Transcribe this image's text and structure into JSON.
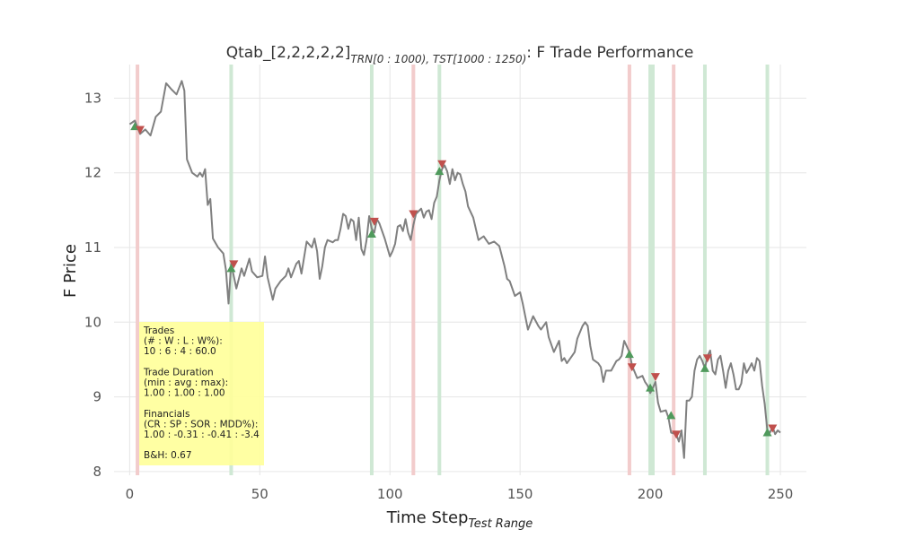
{
  "chart_data": {
    "type": "line",
    "title": {
      "prefix": "Qtab_[2,2,2,2,2]",
      "sub1": "TRN[0 : 1000), ",
      "sub2": "TST[1000 : 1250)",
      "suffix": ": F Trade Performance"
    },
    "xlabel": {
      "main": "Time Step",
      "sub": "Test Range"
    },
    "ylabel": "F Price",
    "xlim": [
      -6,
      260
    ],
    "ylim": [
      7.95,
      13.45
    ],
    "xticks": [
      0,
      50,
      100,
      150,
      200,
      250
    ],
    "yticks": [
      8,
      9,
      10,
      11,
      12,
      13
    ],
    "grid": true,
    "colors": {
      "line": "#808080",
      "buy": "#4f9a5c",
      "sell": "#c0504d",
      "buy_band": "#cfe8d4",
      "sell_band": "#f2cccc",
      "grid": "#e6e6e6",
      "info_box": "#ffff99"
    },
    "series": [
      {
        "points": [
          [
            0,
            12.65
          ],
          [
            2,
            12.7
          ],
          [
            4,
            12.52
          ],
          [
            6,
            12.58
          ],
          [
            8,
            12.5
          ],
          [
            10,
            12.75
          ],
          [
            12,
            12.82
          ],
          [
            14,
            13.2
          ],
          [
            16,
            13.12
          ],
          [
            18,
            13.05
          ],
          [
            20,
            13.23
          ],
          [
            21,
            13.1
          ],
          [
            22,
            12.18
          ],
          [
            24,
            12.0
          ],
          [
            26,
            11.95
          ],
          [
            27,
            12.0
          ],
          [
            28,
            11.95
          ],
          [
            29,
            12.05
          ],
          [
            30,
            11.57
          ],
          [
            31,
            11.65
          ],
          [
            32,
            11.12
          ],
          [
            34,
            11.0
          ],
          [
            36,
            10.92
          ],
          [
            37,
            10.7
          ],
          [
            38,
            10.25
          ],
          [
            39,
            10.78
          ],
          [
            40,
            10.62
          ],
          [
            41,
            10.45
          ],
          [
            43,
            10.72
          ],
          [
            44,
            10.62
          ],
          [
            46,
            10.85
          ],
          [
            47,
            10.68
          ],
          [
            49,
            10.6
          ],
          [
            51,
            10.62
          ],
          [
            52,
            10.88
          ],
          [
            53,
            10.6
          ],
          [
            55,
            10.3
          ],
          [
            56,
            10.45
          ],
          [
            58,
            10.55
          ],
          [
            60,
            10.62
          ],
          [
            61,
            10.72
          ],
          [
            62,
            10.6
          ],
          [
            64,
            10.78
          ],
          [
            65,
            10.82
          ],
          [
            66,
            10.65
          ],
          [
            68,
            11.08
          ],
          [
            70,
            11.0
          ],
          [
            71,
            11.12
          ],
          [
            72,
            10.95
          ],
          [
            73,
            10.58
          ],
          [
            74,
            10.75
          ],
          [
            75,
            11.0
          ],
          [
            76,
            11.1
          ],
          [
            78,
            11.07
          ],
          [
            79,
            11.1
          ],
          [
            80,
            11.1
          ],
          [
            81,
            11.25
          ],
          [
            82,
            11.45
          ],
          [
            83,
            11.42
          ],
          [
            84,
            11.25
          ],
          [
            85,
            11.38
          ],
          [
            86,
            11.35
          ],
          [
            87,
            11.1
          ],
          [
            88,
            11.4
          ],
          [
            89,
            10.98
          ],
          [
            90,
            10.9
          ],
          [
            91,
            11.1
          ],
          [
            92,
            11.42
          ],
          [
            93,
            11.25
          ],
          [
            94,
            11.2
          ],
          [
            95,
            11.38
          ],
          [
            96,
            11.32
          ],
          [
            98,
            11.12
          ],
          [
            99,
            11.0
          ],
          [
            100,
            10.88
          ],
          [
            101,
            10.95
          ],
          [
            102,
            11.05
          ],
          [
            103,
            11.28
          ],
          [
            104,
            11.3
          ],
          [
            105,
            11.22
          ],
          [
            106,
            11.38
          ],
          [
            107,
            11.2
          ],
          [
            108,
            11.1
          ],
          [
            109,
            11.3
          ],
          [
            110,
            11.45
          ],
          [
            112,
            11.52
          ],
          [
            113,
            11.4
          ],
          [
            114,
            11.48
          ],
          [
            115,
            11.5
          ],
          [
            116,
            11.38
          ],
          [
            117,
            11.6
          ],
          [
            118,
            11.68
          ],
          [
            119,
            11.9
          ],
          [
            120,
            12.05
          ],
          [
            121,
            12.1
          ],
          [
            122,
            12.02
          ],
          [
            123,
            11.85
          ],
          [
            124,
            12.05
          ],
          [
            125,
            11.9
          ],
          [
            126,
            12.0
          ],
          [
            127,
            11.98
          ],
          [
            128,
            11.85
          ],
          [
            129,
            11.75
          ],
          [
            130,
            11.55
          ],
          [
            132,
            11.4
          ],
          [
            134,
            11.1
          ],
          [
            136,
            11.15
          ],
          [
            138,
            11.05
          ],
          [
            140,
            11.08
          ],
          [
            142,
            11.02
          ],
          [
            144,
            10.75
          ],
          [
            145,
            10.58
          ],
          [
            146,
            10.55
          ],
          [
            148,
            10.35
          ],
          [
            150,
            10.4
          ],
          [
            151,
            10.25
          ],
          [
            153,
            9.9
          ],
          [
            155,
            10.08
          ],
          [
            157,
            9.95
          ],
          [
            158,
            9.9
          ],
          [
            160,
            10.0
          ],
          [
            161,
            9.8
          ],
          [
            163,
            9.6
          ],
          [
            165,
            9.75
          ],
          [
            166,
            9.48
          ],
          [
            167,
            9.52
          ],
          [
            168,
            9.45
          ],
          [
            170,
            9.55
          ],
          [
            171,
            9.6
          ],
          [
            172,
            9.78
          ],
          [
            174,
            9.95
          ],
          [
            175,
            10.0
          ],
          [
            176,
            9.95
          ],
          [
            177,
            9.68
          ],
          [
            178,
            9.5
          ],
          [
            180,
            9.45
          ],
          [
            181,
            9.4
          ],
          [
            182,
            9.2
          ],
          [
            183,
            9.35
          ],
          [
            185,
            9.35
          ],
          [
            187,
            9.48
          ],
          [
            188,
            9.5
          ],
          [
            189,
            9.55
          ],
          [
            190,
            9.75
          ],
          [
            192,
            9.6
          ],
          [
            193,
            9.42
          ],
          [
            195,
            9.25
          ],
          [
            197,
            9.28
          ],
          [
            198,
            9.2
          ],
          [
            199,
            9.15
          ],
          [
            200,
            9.05
          ],
          [
            201,
            9.12
          ],
          [
            202,
            9.2
          ],
          [
            203,
            8.92
          ],
          [
            204,
            8.8
          ],
          [
            206,
            8.82
          ],
          [
            207,
            8.72
          ],
          [
            208,
            8.52
          ],
          [
            210,
            8.5
          ],
          [
            211,
            8.4
          ],
          [
            212,
            8.55
          ],
          [
            213,
            8.18
          ],
          [
            214,
            8.95
          ],
          [
            215,
            8.95
          ],
          [
            216,
            9.0
          ],
          [
            217,
            9.35
          ],
          [
            218,
            9.5
          ],
          [
            219,
            9.55
          ],
          [
            220,
            9.48
          ],
          [
            221,
            9.38
          ],
          [
            222,
            9.55
          ],
          [
            223,
            9.62
          ],
          [
            224,
            9.35
          ],
          [
            225,
            9.3
          ],
          [
            226,
            9.5
          ],
          [
            227,
            9.55
          ],
          [
            228,
            9.35
          ],
          [
            229,
            9.12
          ],
          [
            230,
            9.35
          ],
          [
            231,
            9.45
          ],
          [
            232,
            9.3
          ],
          [
            233,
            9.1
          ],
          [
            234,
            9.1
          ],
          [
            235,
            9.18
          ],
          [
            236,
            9.45
          ],
          [
            237,
            9.32
          ],
          [
            238,
            9.38
          ],
          [
            239,
            9.45
          ],
          [
            240,
            9.35
          ],
          [
            241,
            9.52
          ],
          [
            242,
            9.48
          ],
          [
            243,
            9.15
          ],
          [
            244,
            8.9
          ],
          [
            245,
            8.55
          ],
          [
            246,
            8.52
          ],
          [
            247,
            8.6
          ],
          [
            248,
            8.5
          ],
          [
            249,
            8.55
          ],
          [
            250,
            8.52
          ]
        ]
      }
    ],
    "buy_marks": [
      [
        2,
        12.62
      ],
      [
        39,
        10.72
      ],
      [
        93,
        11.18
      ],
      [
        119,
        12.02
      ],
      [
        192,
        9.57
      ],
      [
        200,
        9.12
      ],
      [
        208,
        8.75
      ],
      [
        221,
        9.38
      ],
      [
        245,
        8.52
      ]
    ],
    "sell_marks": [
      [
        4,
        12.58
      ],
      [
        40,
        10.78
      ],
      [
        94,
        11.35
      ],
      [
        109,
        11.45
      ],
      [
        120,
        12.12
      ],
      [
        193,
        9.4
      ],
      [
        202,
        9.27
      ],
      [
        210,
        8.5
      ],
      [
        222,
        9.52
      ],
      [
        247,
        8.58
      ]
    ],
    "buy_bands": [
      39,
      93,
      119,
      200,
      201,
      221,
      245
    ],
    "sell_bands": [
      3,
      109,
      192,
      209
    ],
    "info_box": {
      "lines": [
        "Trades",
        "(# : W : L : W%):",
        "10 : 6 : 4 : 60.0",
        "",
        "Trade Duration",
        "(min : avg : max):",
        "1.00 : 1.00 : 1.00",
        "",
        "Financials",
        "(CR : SP : SOR : MDD%):",
        "1.00 : -0.31 : -0.41 : -3.4",
        "",
        "B&H: 0.67"
      ]
    }
  }
}
